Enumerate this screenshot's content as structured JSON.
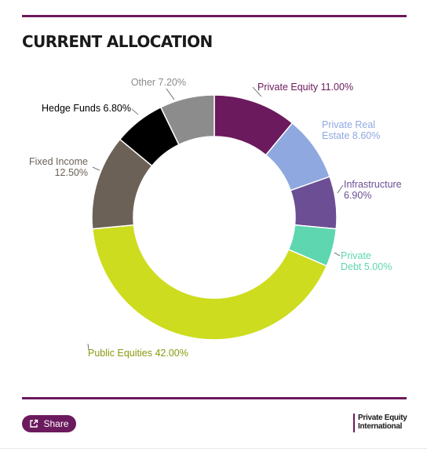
{
  "title": "CURRENT ALLOCATION",
  "share": {
    "label": "Share",
    "icon": "share-icon"
  },
  "brand": {
    "line1": "Private Equity",
    "line2": "International",
    "color": "#6b1a5d"
  },
  "chart_data": {
    "type": "pie",
    "title": "CURRENT ALLOCATION",
    "unit": "%",
    "slices": [
      {
        "label": "Private Equity 11.00%",
        "value": 11.0,
        "color": "#6b1a5d"
      },
      {
        "label": "Private Real Estate 8.60%",
        "value": 8.6,
        "color": "#8fa8e0"
      },
      {
        "label": "Infrastructure 6.90%",
        "value": 6.9,
        "color": "#6b4e93"
      },
      {
        "label": "Private Debt 5.00%",
        "value": 5.0,
        "color": "#5ed6b0"
      },
      {
        "label": "Public Equities 42.00%",
        "value": 42.0,
        "color": "#cddc1e"
      },
      {
        "label": "Fixed Income 12.50%",
        "value": 12.5,
        "color": "#6b6157"
      },
      {
        "label": "Hedge Funds 6.80%",
        "value": 6.8,
        "color": "#000000"
      },
      {
        "label": "Other 7.20%",
        "value": 7.2,
        "color": "#8c8c8c"
      }
    ]
  }
}
